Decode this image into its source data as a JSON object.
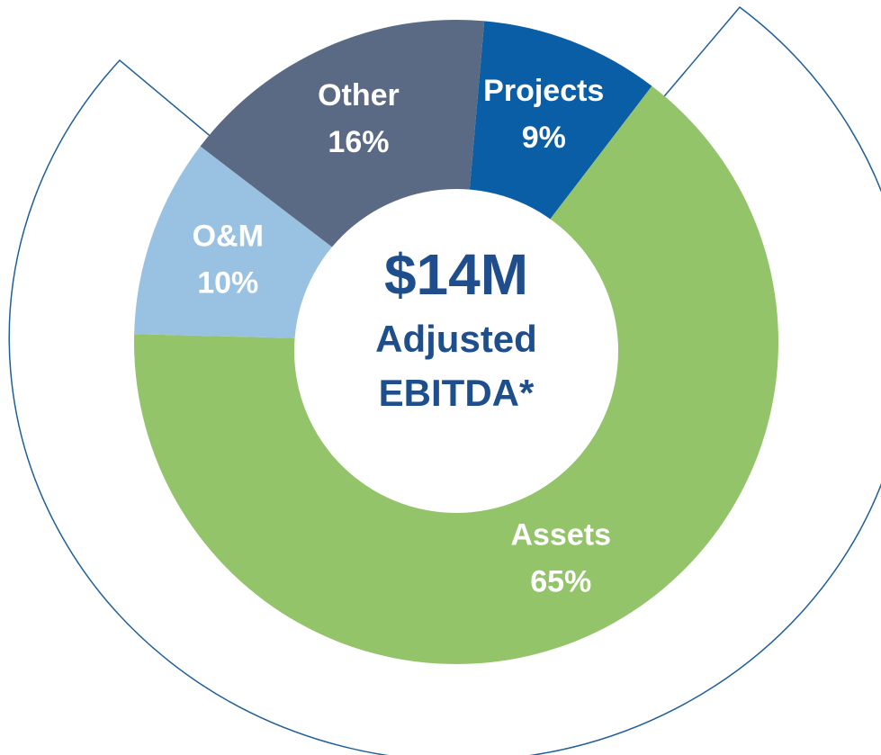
{
  "chart_data": {
    "type": "pie",
    "categories": [
      "Projects",
      "Assets",
      "O&M",
      "Other"
    ],
    "values": [
      9,
      65,
      10,
      16
    ],
    "value_labels": [
      "9%",
      "65%",
      "10%",
      "16%"
    ],
    "colors": [
      "#0a5ea6",
      "#93c46a",
      "#99c1e1",
      "#5a6a84"
    ],
    "center_text": [
      "$14M",
      "Adjusted",
      "EBITDA*"
    ]
  }
}
